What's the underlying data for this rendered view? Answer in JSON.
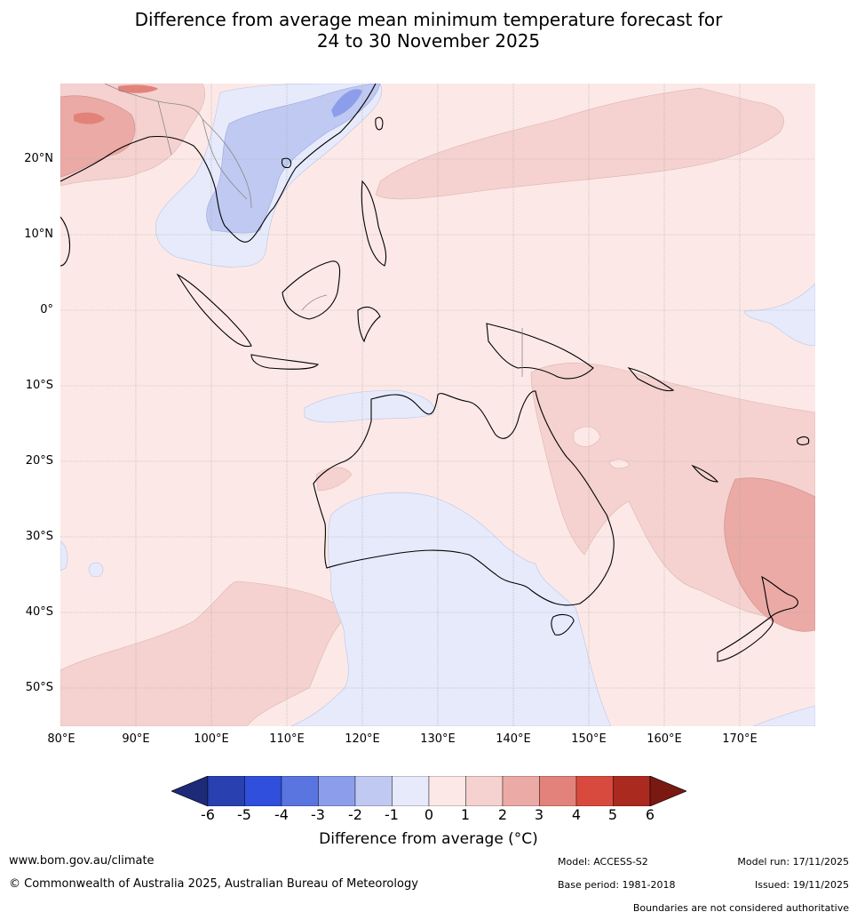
{
  "title_line1": "Difference from average mean minimum temperature forecast for",
  "title_line2": "24 to 30 November 2025",
  "lat_labels": [
    "20°N",
    "10°N",
    "0°",
    "10°S",
    "20°S",
    "30°S",
    "40°S",
    "50°S"
  ],
  "lon_labels": [
    "80°E",
    "90°E",
    "100°E",
    "110°E",
    "120°E",
    "130°E",
    "140°E",
    "150°E",
    "160°E",
    "170°E"
  ],
  "colorbar": {
    "ticks": [
      "-6",
      "-5",
      "-4",
      "-3",
      "-2",
      "-1",
      "0",
      "1",
      "2",
      "3",
      "4",
      "5",
      "6"
    ],
    "label": "Difference from average (°C)",
    "colors": [
      "#1c2a78",
      "#2840b0",
      "#2f4fdc",
      "#5a74e0",
      "#8c9eeb",
      "#c0c9f2",
      "#e6eafb",
      "#fce9e7",
      "#f5d2cf",
      "#ebaaa5",
      "#e3827a",
      "#d94a3e",
      "#aa2a20",
      "#7a1812"
    ]
  },
  "footer": {
    "url": "www.bom.gov.au/climate",
    "copyright": "© Commonwealth of Australia 2025, Australian Bureau of Meteorology",
    "model": "Model: ACCESS-S2",
    "base_period": "Base period: 1981-2018",
    "model_run": "Model run: 17/11/2025",
    "issued": "Issued: 19/11/2025",
    "boundaries": "Boundaries are not considered authoritative"
  }
}
